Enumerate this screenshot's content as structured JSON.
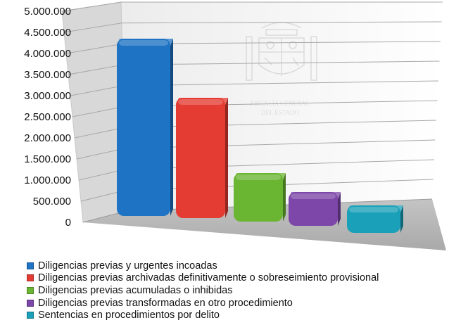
{
  "chart_data": {
    "type": "bar",
    "three_d": true,
    "categories": [
      "Diligencias previas y urgentes incoadas",
      "Diligencias previas archivadas definitivamente o sobreseimiento provisional",
      "Diligencias previas acumuladas o inhibidas",
      "Diligencias previas transformadas en otro procedimiento",
      "Sentencias en procedimientos por delito"
    ],
    "values": [
      4200000,
      2850000,
      1150000,
      800000,
      650000
    ],
    "colors": [
      "#1e73c4",
      "#e43b32",
      "#6ab531",
      "#7c47a8",
      "#1aa0b8"
    ],
    "ylim": [
      0,
      5000000
    ],
    "yticks": [
      "0",
      "500.000",
      "1.000.000",
      "1.500.000",
      "2.000.000",
      "2.500.000",
      "3.000.000",
      "3.500.000",
      "4.000.000",
      "4.500.000",
      "5.000.000"
    ],
    "grid": true,
    "legend": "bottom",
    "title": "",
    "xlabel": "",
    "ylabel": ""
  },
  "watermark": {
    "line1": "FISCALÍA GENERAL",
    "line2": "DEL ESTADO"
  }
}
